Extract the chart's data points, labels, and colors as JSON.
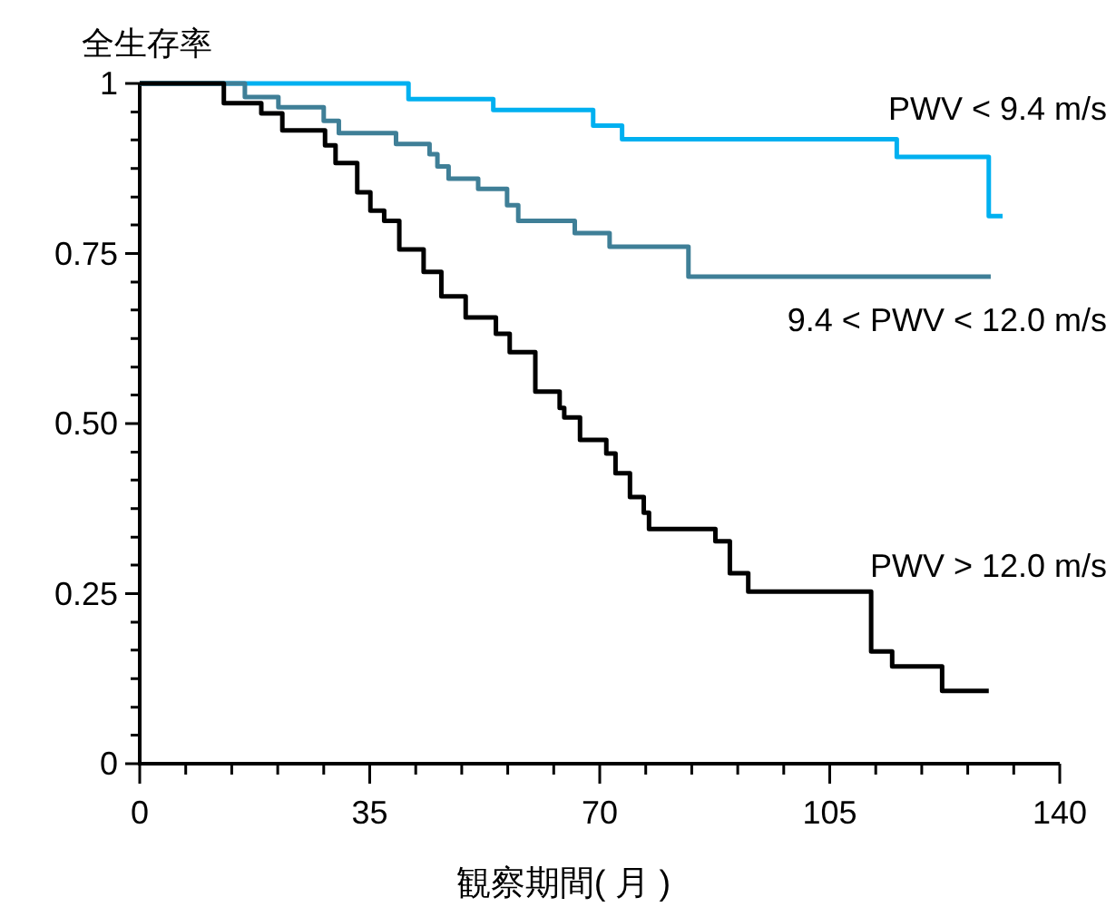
{
  "chart_data": {
    "type": "step",
    "ylabel": "全生存率",
    "xlabel": "観察期間( 月 )",
    "xlim": [
      0,
      140
    ],
    "xticks": [
      0,
      {
        "value": 7,
        "label": null
      },
      {
        "value": 14,
        "label": null
      },
      {
        "value": 21,
        "label": null
      },
      {
        "value": 28,
        "label": null
      },
      35,
      {
        "value": 42,
        "label": null
      },
      {
        "value": 49,
        "label": null
      },
      {
        "value": 56,
        "label": null
      },
      {
        "value": 63,
        "label": null
      },
      70,
      {
        "value": 77,
        "label": null
      },
      {
        "value": 84,
        "label": null
      },
      {
        "value": 91,
        "label": null
      },
      {
        "value": 98,
        "label": null
      },
      105,
      {
        "value": 112,
        "label": null
      },
      {
        "value": 119,
        "label": null
      },
      {
        "value": 126,
        "label": null
      },
      {
        "value": 133,
        "label": null
      },
      140
    ],
    "ylim": [
      0,
      1
    ],
    "yticks": [
      0,
      {
        "value": 0.042,
        "label": null
      },
      {
        "value": 0.083,
        "label": null
      },
      {
        "value": 0.125,
        "label": null
      },
      {
        "value": 0.167,
        "label": null
      },
      {
        "value": 0.208,
        "label": null
      },
      0.25,
      {
        "value": 0.292,
        "label": null
      },
      {
        "value": 0.333,
        "label": null
      },
      {
        "value": 0.375,
        "label": null
      },
      {
        "value": 0.417,
        "label": null
      },
      {
        "value": 0.458,
        "label": null
      },
      {
        "value": 0.5,
        "label": "0.50"
      },
      {
        "value": 0.542,
        "label": null
      },
      {
        "value": 0.583,
        "label": null
      },
      {
        "value": 0.625,
        "label": null
      },
      {
        "value": 0.667,
        "label": null
      },
      {
        "value": 0.708,
        "label": null
      },
      0.75,
      {
        "value": 0.792,
        "label": null
      },
      {
        "value": 0.833,
        "label": null
      },
      {
        "value": 0.875,
        "label": null
      },
      {
        "value": 0.917,
        "label": null
      },
      {
        "value": 0.958,
        "label": null
      },
      1
    ],
    "series": [
      {
        "name": "PWV < 9.4 m/s",
        "color": "#00b0f0",
        "x": [
          0,
          40.9,
          53.8,
          69.0,
          73.4,
          115.2,
          129.2,
          131.3
        ],
        "values": [
          1.0,
          0.977,
          0.961,
          0.938,
          0.918,
          0.892,
          0.805,
          0.805
        ]
      },
      {
        "name": "9.4 < PWV < 12.0 m/s",
        "color": "#3f7f97",
        "x": [
          0,
          16.0,
          21.1,
          28.0,
          30.3,
          39.0,
          44.1,
          45.3,
          47.0,
          51.5,
          55.9,
          57.6,
          66.2,
          71.5,
          83.5,
          129.5
        ],
        "values": [
          1.0,
          0.98,
          0.965,
          0.945,
          0.927,
          0.911,
          0.896,
          0.878,
          0.86,
          0.845,
          0.821,
          0.798,
          0.78,
          0.76,
          0.716,
          0.716
        ]
      },
      {
        "name": "PWV > 12.0 m/s",
        "color": "#000000",
        "x": [
          0,
          12.8,
          18.5,
          21.7,
          28.2,
          29.8,
          33.1,
          35.1,
          37.2,
          39.5,
          43.2,
          45.9,
          49.6,
          54.2,
          56.3,
          60.2,
          63.9,
          64.6,
          67.0,
          71.0,
          72.4,
          74.6,
          76.7,
          77.5,
          87.6,
          89.8,
          92.6,
          111.3,
          114.5,
          122.1,
          129.2
        ],
        "values": [
          1.0,
          0.971,
          0.956,
          0.931,
          0.909,
          0.883,
          0.84,
          0.813,
          0.798,
          0.756,
          0.723,
          0.687,
          0.656,
          0.632,
          0.605,
          0.547,
          0.523,
          0.509,
          0.476,
          0.456,
          0.427,
          0.392,
          0.369,
          0.345,
          0.327,
          0.28,
          0.253,
          0.165,
          0.143,
          0.107,
          0.107
        ]
      }
    ]
  }
}
